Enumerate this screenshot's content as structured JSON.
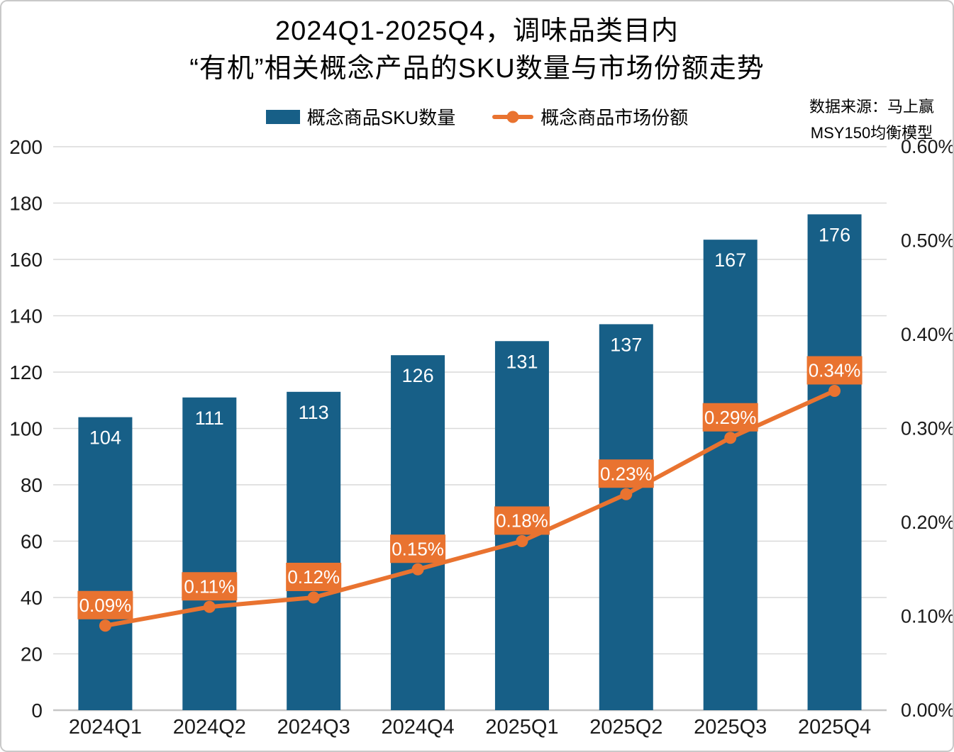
{
  "title": {
    "line1": "2024Q1-2025Q4，调味品类目内",
    "line2": "“有机”相关概念产品的SKU数量与市场份额走势"
  },
  "source": {
    "line1": "数据来源：马上赢",
    "line2": "MSY150均衡模型"
  },
  "legend": {
    "items": [
      {
        "label": "概念商品SKU数量",
        "marker": "bar-swatch"
      },
      {
        "label": "概念商品市场份额",
        "marker": "line-dot-swatch"
      }
    ]
  },
  "colors": {
    "bar": "#175F87",
    "line": "#E97330",
    "grid": "#D9D9D9",
    "zero_line": "#C6C6C6",
    "axis_text": "#1A1A1A",
    "label_text": "#FFFFFF"
  },
  "chart_data": {
    "type": "bar+line",
    "title": "2024Q1-2025Q4，调味品类目内“有机”相关概念产品的SKU数量与市场份额走势",
    "categories": [
      "2024Q1",
      "2024Q2",
      "2024Q3",
      "2024Q4",
      "2025Q1",
      "2025Q2",
      "2025Q3",
      "2025Q4"
    ],
    "series": [
      {
        "name": "概念商品SKU数量",
        "type": "bar",
        "y_axis": "left",
        "color": "#175F87",
        "values": [
          104,
          111,
          113,
          126,
          131,
          137,
          167,
          176
        ]
      },
      {
        "name": "概念商品市场份额",
        "type": "line",
        "y_axis": "right",
        "color": "#E97330",
        "values_percent": [
          0.09,
          0.11,
          0.12,
          0.15,
          0.18,
          0.23,
          0.29,
          0.34
        ],
        "point_labels": [
          "0.09%",
          "0.11%",
          "0.12%",
          "0.15%",
          "0.18%",
          "0.23%",
          "0.29%",
          "0.34%"
        ]
      }
    ],
    "left_axis": {
      "min": 0,
      "max": 200,
      "step": 20,
      "tick_labels": [
        "0",
        "20",
        "40",
        "60",
        "80",
        "100",
        "120",
        "140",
        "160",
        "180",
        "200"
      ]
    },
    "right_axis": {
      "min": 0.0,
      "max": 0.6,
      "step": 0.1,
      "tick_labels": [
        "0.00%",
        "0.10%",
        "0.20%",
        "0.30%",
        "0.40%",
        "0.50%",
        "0.60%"
      ]
    },
    "grid": "horizontal",
    "legend_position": "top-center"
  }
}
